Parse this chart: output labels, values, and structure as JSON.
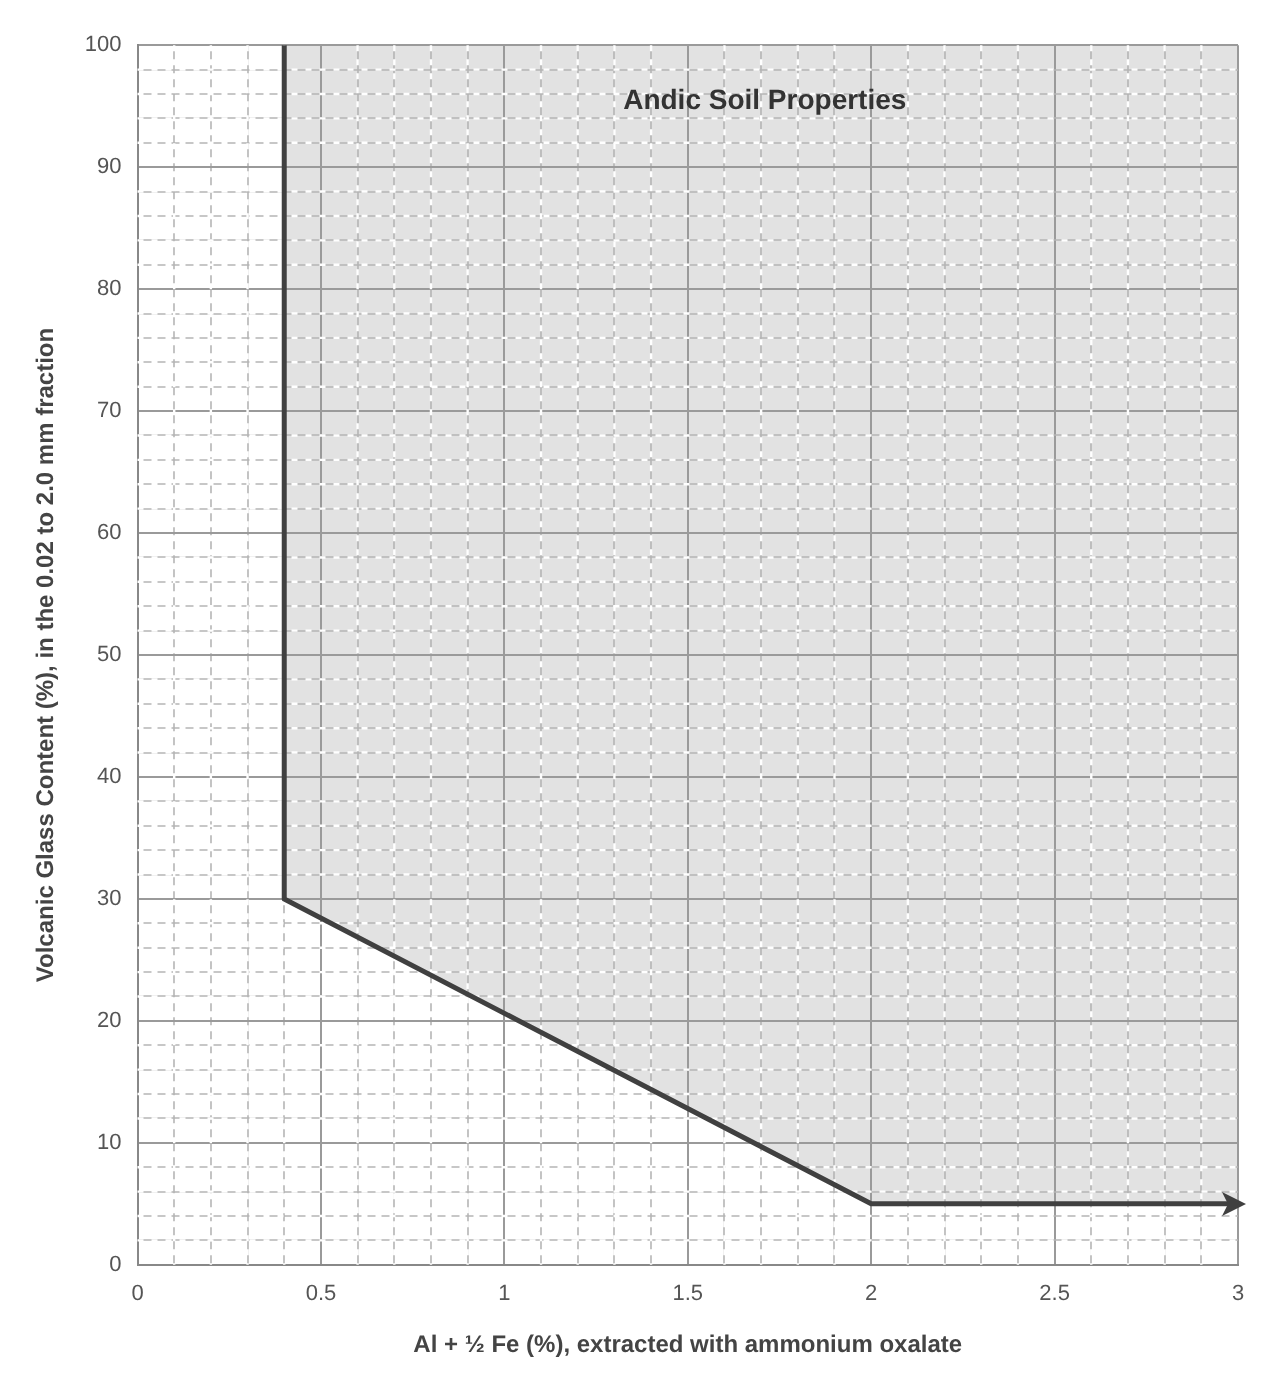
{
  "chart_data": {
    "type": "line",
    "xlabel": "Al + ½ Fe (%), extracted with ammonium oxalate",
    "ylabel": "Volcanic Glass Content (%), in the 0.02 to 2.0 mm fraction",
    "annotations": [
      "Andic Soil Properties"
    ],
    "series": [
      {
        "x": [
          0.4,
          0.4,
          2.0,
          3.0
        ],
        "values": [
          100,
          30,
          5,
          5
        ],
        "color": "#404040"
      }
    ],
    "xlim": [
      0,
      3
    ],
    "xticks": [
      0,
      {
        "value": 0.1,
        "label": null
      },
      {
        "value": 0.2,
        "label": null
      },
      {
        "value": 0.3,
        "label": null
      },
      {
        "value": 0.4,
        "label": null
      },
      0.5,
      {
        "value": 0.6,
        "label": null
      },
      {
        "value": 0.7,
        "label": null
      },
      {
        "value": 0.8,
        "label": null
      },
      {
        "value": 0.9,
        "label": null
      },
      1,
      {
        "value": 1.1,
        "label": null
      },
      {
        "value": 1.2,
        "label": null
      },
      {
        "value": 1.3,
        "label": null
      },
      {
        "value": 1.4,
        "label": null
      },
      1.5,
      {
        "value": 1.6,
        "label": null
      },
      {
        "value": 1.7,
        "label": null
      },
      {
        "value": 1.8,
        "label": null
      },
      {
        "value": 1.9,
        "label": null
      },
      2,
      {
        "value": 2.1,
        "label": null
      },
      {
        "value": 2.2,
        "label": null
      },
      {
        "value": 2.3,
        "label": null
      },
      {
        "value": 2.4,
        "label": null
      },
      2.5,
      {
        "value": 2.6,
        "label": null
      },
      {
        "value": 2.7,
        "label": null
      },
      {
        "value": 2.8,
        "label": null
      },
      {
        "value": 2.9,
        "label": null
      },
      3
    ],
    "ylim": [
      0,
      100
    ],
    "yticks": [
      0,
      {
        "value": 2,
        "label": null
      },
      {
        "value": 4,
        "label": null
      },
      {
        "value": 6,
        "label": null
      },
      {
        "value": 8,
        "label": null
      },
      10,
      {
        "value": 12,
        "label": null
      },
      {
        "value": 14,
        "label": null
      },
      {
        "value": 16,
        "label": null
      },
      {
        "value": 18,
        "label": null
      },
      20,
      {
        "value": 22,
        "label": null
      },
      {
        "value": 24,
        "label": null
      },
      {
        "value": 26,
        "label": null
      },
      {
        "value": 28,
        "label": null
      },
      30,
      {
        "value": 32,
        "label": null
      },
      {
        "value": 34,
        "label": null
      },
      {
        "value": 36,
        "label": null
      },
      {
        "value": 38,
        "label": null
      },
      40,
      {
        "value": 42,
        "label": null
      },
      {
        "value": 44,
        "label": null
      },
      {
        "value": 46,
        "label": null
      },
      {
        "value": 48,
        "label": null
      },
      50,
      {
        "value": 52,
        "label": null
      },
      {
        "value": 54,
        "label": null
      },
      {
        "value": 56,
        "label": null
      },
      {
        "value": 58,
        "label": null
      },
      60,
      {
        "value": 62,
        "label": null
      },
      {
        "value": 64,
        "label": null
      },
      {
        "value": 66,
        "label": null
      },
      {
        "value": 68,
        "label": null
      },
      70,
      {
        "value": 72,
        "label": null
      },
      {
        "value": 74,
        "label": null
      },
      {
        "value": 76,
        "label": null
      },
      {
        "value": 78,
        "label": null
      },
      80,
      {
        "value": 82,
        "label": null
      },
      {
        "value": 84,
        "label": null
      },
      {
        "value": 86,
        "label": null
      },
      {
        "value": 88,
        "label": null
      },
      90,
      {
        "value": 92,
        "label": null
      },
      {
        "value": 94,
        "label": null
      },
      {
        "value": 96,
        "label": null
      },
      {
        "value": 98,
        "label": null
      },
      100
    ],
    "grid": true,
    "line_style": "solid",
    "marker": "none"
  }
}
